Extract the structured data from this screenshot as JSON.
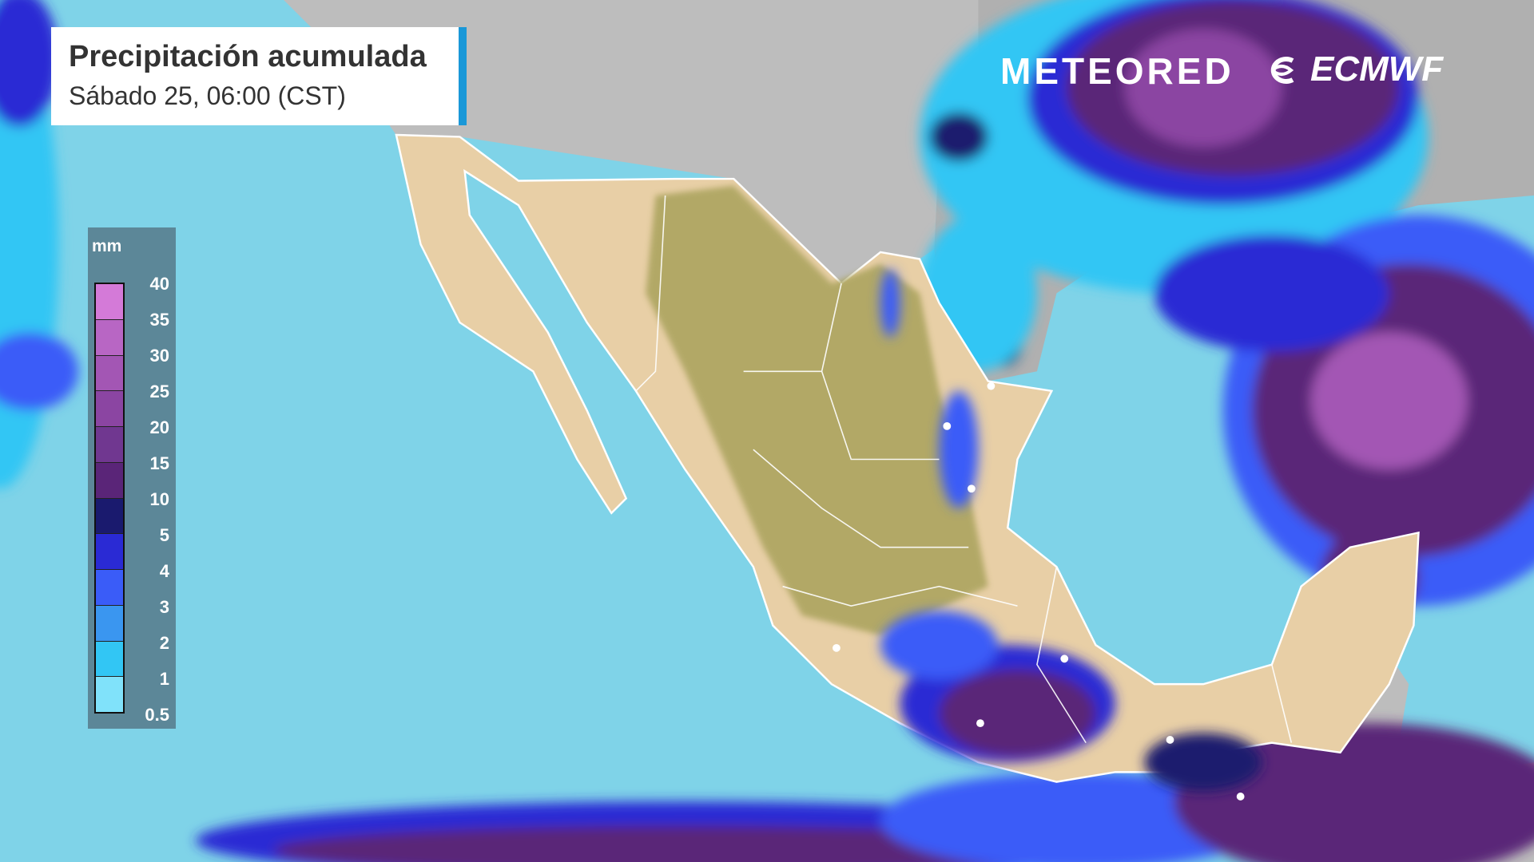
{
  "header": {
    "title": "Precipitación acumulada",
    "subtitle": "Sábado 25, 06:00 (CST)"
  },
  "branding": {
    "meteored": "METEORED",
    "ecmwf": "ECMWF"
  },
  "legend": {
    "unit": "mm",
    "ticks": [
      "40",
      "35",
      "30",
      "25",
      "20",
      "15",
      "10",
      "5",
      "4",
      "3",
      "2",
      "1",
      "0.5"
    ],
    "colors": [
      "#d47ad8",
      "#b866c4",
      "#a356b4",
      "#8b45a2",
      "#703790",
      "#5a2578",
      "#1a1a6e",
      "#2a2ad4",
      "#3a5cf8",
      "#3a96f0",
      "#32c6f4",
      "#80e2fa"
    ]
  },
  "colors": {
    "ocean": "#7fd3e8",
    "land_other": "#bdbdbd",
    "land_mexico": "#e8cfa6",
    "highlands": "#a9a25c",
    "accent": "#1a98d8"
  }
}
